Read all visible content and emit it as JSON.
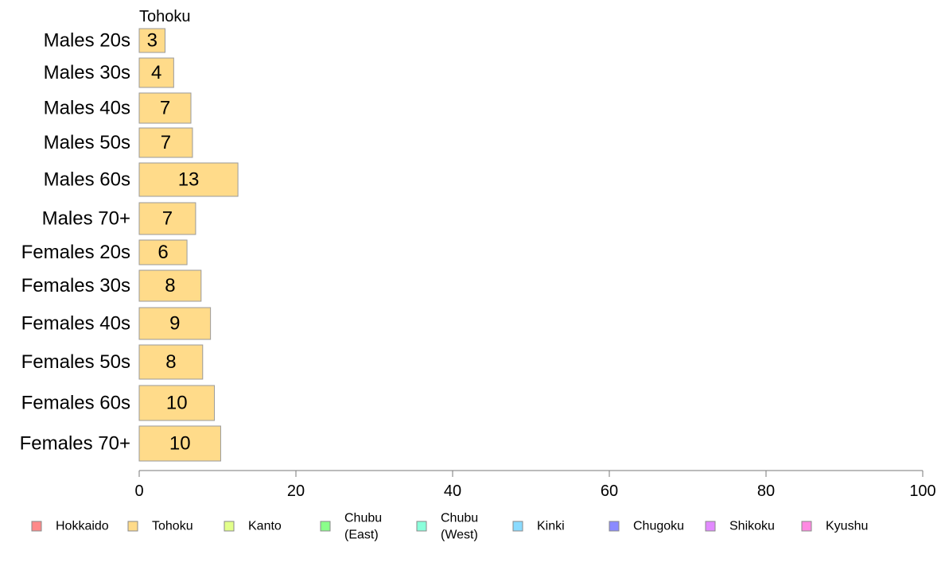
{
  "chart_data": {
    "type": "bar",
    "orientation": "horizontal",
    "panel_title": "Tohoku",
    "categories": [
      "Males 20s",
      "Males 30s",
      "Males 40s",
      "Males 50s",
      "Males 60s",
      "Males 70+",
      "Females 20s",
      "Females 30s",
      "Females 40s",
      "Females 50s",
      "Females 60s",
      "Females 70+"
    ],
    "series": [
      {
        "name": "Tohoku",
        "color": "#ffdb8a",
        "values": [
          3.3,
          4.4,
          6.6,
          6.8,
          12.6,
          7.2,
          6.1,
          7.9,
          9.1,
          8.1,
          9.6,
          10.4
        ],
        "labels": [
          "3",
          "4",
          "7",
          "7",
          "13",
          "7",
          "6",
          "8",
          "9",
          "8",
          "10",
          "10"
        ]
      }
    ],
    "xlim": [
      0,
      100
    ],
    "xticks": [
      0,
      20,
      40,
      60,
      80,
      100
    ],
    "xtick_labels": [
      "0",
      "20",
      "40",
      "60",
      "80",
      "100"
    ],
    "grid": false,
    "legend": {
      "placement": "bottom",
      "items": [
        {
          "label": [
            "Hokkaido"
          ],
          "color": "#ff8a8a"
        },
        {
          "label": [
            "Tohoku"
          ],
          "color": "#ffdb8a"
        },
        {
          "label": [
            "Kanto"
          ],
          "color": "#e2ff8a"
        },
        {
          "label": [
            "Chubu",
            "(East)"
          ],
          "color": "#8aff8a"
        },
        {
          "label": [
            "Chubu",
            "(West)"
          ],
          "color": "#8affdb"
        },
        {
          "label": [
            "Kinki"
          ],
          "color": "#8adbff"
        },
        {
          "label": [
            "Chugoku"
          ],
          "color": "#8a8aff"
        },
        {
          "label": [
            "Shikoku"
          ],
          "color": "#e28aff"
        },
        {
          "label": [
            "Kyushu"
          ],
          "color": "#ff8ae2"
        }
      ]
    }
  }
}
